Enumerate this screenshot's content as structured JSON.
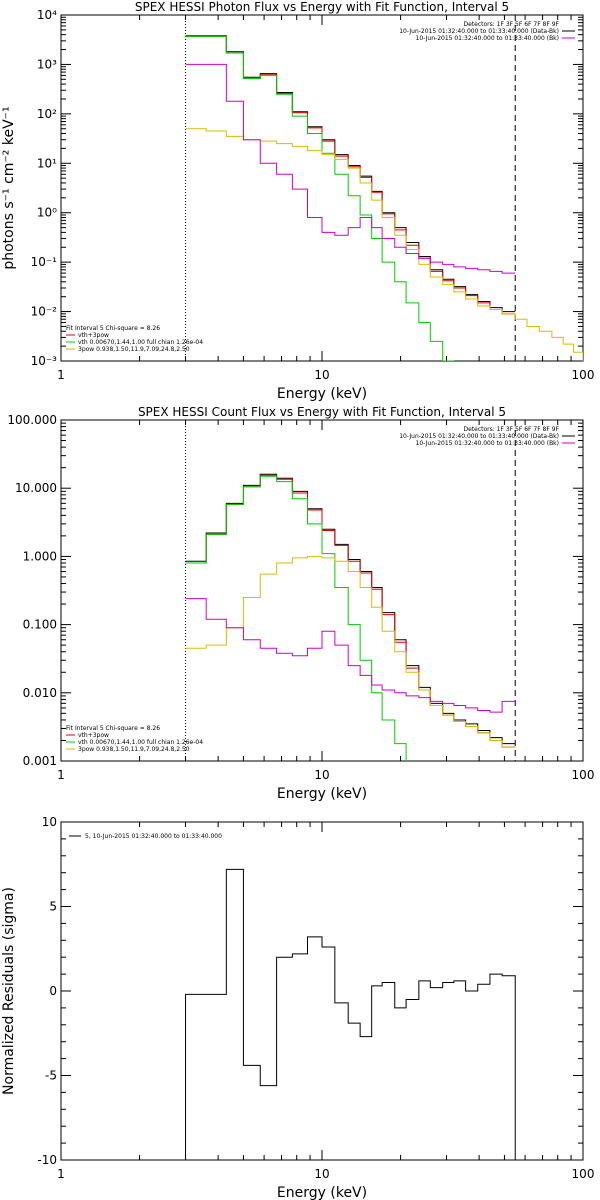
{
  "chart_data": [
    {
      "type": "line",
      "title": "SPEX HESSI Photon Flux vs Energy with Fit Function, Interval 5",
      "xlabel": "Energy (keV)",
      "ylabel": "photons s⁻¹ cm⁻² keV⁻¹",
      "xscale": "log",
      "yscale": "log",
      "xlim": [
        1,
        100
      ],
      "ylim": [
        0.001,
        10000
      ],
      "x_ticks": [
        {
          "v": 1,
          "label": "1"
        },
        {
          "v": 10,
          "label": "10"
        },
        {
          "v": 100,
          "label": "100"
        }
      ],
      "y_ticks": [
        {
          "v": 0.001,
          "label": "10⁻³"
        },
        {
          "v": 0.01,
          "label": "10⁻²"
        },
        {
          "v": 0.1,
          "label": "10⁻¹"
        },
        {
          "v": 1,
          "label": "10⁰"
        },
        {
          "v": 10,
          "label": "10¹"
        },
        {
          "v": 100,
          "label": "10²"
        },
        {
          "v": 1000,
          "label": "10³"
        },
        {
          "v": 10000,
          "label": "10⁴"
        }
      ],
      "legend_top": {
        "placement": "top-right",
        "lines": [
          {
            "text": "Detectors: 1F 3F 5F 6F 7F 8F 9F",
            "color": ""
          },
          {
            "text": "10-Jun-2015 01:32:40.000 to 01:33:40.000 (Data-Bk)",
            "color": "#000000"
          },
          {
            "text": "10-Jun-2015 01:32:40.000 to 01:33:40.000 (Bk)",
            "color": "#cc00cc"
          }
        ]
      },
      "legend_bottom": {
        "placement": "bottom-left",
        "lines": [
          {
            "text": "Fit Interval 5   Chi-square = 8.26",
            "color": ""
          },
          {
            "text": "vth+3pow",
            "color": "#dd0000"
          },
          {
            "text": "vth 0.00670,1.44,1.00  full chian 1.26e-04",
            "color": "#00cc00"
          },
          {
            "text": "3pow 0.938,1.50,11.9,7.09,24.8,2.50",
            "color": "#ddbb00"
          }
        ]
      },
      "vlines": [
        {
          "x": 3.0,
          "style": "dotted",
          "color": "#000000"
        },
        {
          "x": 55.0,
          "style": "dashed",
          "color": "#000000"
        }
      ],
      "edges": [
        3.0,
        3.6,
        4.3,
        5.0,
        5.8,
        6.7,
        7.7,
        8.8,
        10.0,
        11.2,
        12.6,
        14.0,
        15.5,
        17.0,
        19.0,
        21.0,
        23.5,
        26.0,
        29.0,
        32.0,
        35.5,
        39.5,
        44.0,
        49.0,
        55.0,
        61.0,
        68.0,
        76.0,
        84.0,
        92.0,
        100.0
      ],
      "series": [
        {
          "color": "#000000",
          "values": [
            3800,
            3800,
            1800,
            550,
            650,
            270,
            110,
            55,
            30,
            15,
            9,
            5.5,
            2.7,
            1.0,
            0.5,
            0.25,
            0.13,
            0.07,
            0.045,
            0.032,
            0.022,
            0.016,
            0.012,
            0.01
          ]
        },
        {
          "color": "#dd0000",
          "values": [
            3700,
            3700,
            1700,
            520,
            620,
            260,
            105,
            52,
            28,
            14,
            8.5,
            5.2,
            2.6,
            0.95,
            0.45,
            0.22,
            0.12,
            0.065,
            0.042,
            0.03,
            0.021,
            0.015,
            0.011,
            0.009
          ]
        },
        {
          "color": "#00cc00",
          "values": [
            3700,
            3700,
            1700,
            520,
            600,
            250,
            90,
            40,
            16,
            6,
            2.2,
            0.9,
            0.3,
            0.1,
            0.04,
            0.015,
            0.006,
            0.0025,
            0.001
          ]
        },
        {
          "color": "#ddbb00",
          "values": [
            50,
            45,
            35,
            30,
            28,
            25,
            22,
            18,
            15,
            12,
            8,
            4,
            1.8,
            0.8,
            0.35,
            0.18,
            0.09,
            0.05,
            0.035,
            0.025,
            0.018,
            0.013,
            0.011,
            0.009,
            0.007,
            0.005,
            0.004,
            0.003,
            0.0022,
            0.0015
          ]
        },
        {
          "color": "#cc00cc",
          "values": [
            1000,
            1000,
            180,
            30,
            10,
            6,
            3,
            0.8,
            0.4,
            0.35,
            0.5,
            0.8,
            0.5,
            0.3,
            0.2,
            0.15,
            0.12,
            0.1,
            0.09,
            0.08,
            0.075,
            0.07,
            0.065,
            0.06
          ]
        }
      ]
    },
    {
      "type": "line",
      "title": "SPEX HESSI Count Flux vs Energy with Fit Function, Interval 5",
      "xlabel": "Energy (keV)",
      "ylabel": "",
      "xscale": "log",
      "yscale": "log",
      "xlim": [
        1,
        100
      ],
      "ylim": [
        0.001,
        100
      ],
      "x_ticks": [
        {
          "v": 1,
          "label": "1"
        },
        {
          "v": 10,
          "label": "10"
        },
        {
          "v": 100,
          "label": "100"
        }
      ],
      "y_ticks": [
        {
          "v": 0.001,
          "label": "0.001"
        },
        {
          "v": 0.01,
          "label": "0.010"
        },
        {
          "v": 0.1,
          "label": "0.100"
        },
        {
          "v": 1,
          "label": "1.000"
        },
        {
          "v": 10,
          "label": "10.000"
        },
        {
          "v": 100,
          "label": "100.000"
        }
      ],
      "legend_top": {
        "placement": "top-right",
        "lines": [
          {
            "text": "Detectors: 1F 3F 5F 6F 7F 8F 9F",
            "color": ""
          },
          {
            "text": "10-Jun-2015 01:32:40.000 to 01:33:40.000 (Data-Bk)",
            "color": "#000000"
          },
          {
            "text": "10-Jun-2015 01:32:40.000 to 01:33:40.000 (Bk)",
            "color": "#cc00cc"
          }
        ]
      },
      "legend_bottom": {
        "placement": "bottom-left",
        "lines": [
          {
            "text": "Fit Interval 5   Chi-square = 8.26",
            "color": ""
          },
          {
            "text": "vth+3pow",
            "color": "#dd0000"
          },
          {
            "text": "vth 0.00670,1.44,1.00  full chian 1.26e-04",
            "color": "#00cc00"
          },
          {
            "text": "3pow 0.938,1.50,11.9,7.09,24.8,2.50",
            "color": "#ddbb00"
          }
        ]
      },
      "vlines": [
        {
          "x": 3.0,
          "style": "dotted",
          "color": "#000000"
        },
        {
          "x": 55.0,
          "style": "dashed",
          "color": "#000000"
        }
      ],
      "edges": [
        3.0,
        3.6,
        4.3,
        5.0,
        5.8,
        6.7,
        7.7,
        8.8,
        10.0,
        11.2,
        12.6,
        14.0,
        15.5,
        17.0,
        19.0,
        21.0,
        23.5,
        26.0,
        29.0,
        32.0,
        35.5,
        39.5,
        44.0,
        49.0,
        55.0
      ],
      "series": [
        {
          "color": "#000000",
          "values": [
            0.85,
            2.2,
            6.0,
            11.0,
            16.0,
            14.0,
            9.0,
            5.0,
            2.5,
            1.5,
            0.9,
            0.6,
            0.35,
            0.15,
            0.06,
            0.025,
            0.012,
            0.007,
            0.005,
            0.004,
            0.0035,
            0.0028,
            0.0022,
            0.0018
          ]
        },
        {
          "color": "#dd0000",
          "values": [
            0.8,
            2.1,
            5.8,
            10.5,
            15.5,
            13.5,
            8.5,
            4.8,
            2.4,
            1.45,
            0.85,
            0.57,
            0.33,
            0.14,
            0.055,
            0.023,
            0.011,
            0.0065,
            0.0047,
            0.0038,
            0.0032,
            0.0026,
            0.002,
            0.0016
          ]
        },
        {
          "color": "#00cc00",
          "values": [
            0.8,
            2.1,
            5.8,
            10.5,
            15.0,
            12.5,
            7.0,
            3.0,
            1.1,
            0.35,
            0.1,
            0.03,
            0.01,
            0.004,
            0.0018,
            0.0009
          ]
        },
        {
          "color": "#ddbb00",
          "values": [
            0.045,
            0.05,
            0.09,
            0.25,
            0.55,
            0.8,
            0.95,
            1.0,
            0.95,
            0.85,
            0.6,
            0.35,
            0.18,
            0.08,
            0.04,
            0.02,
            0.011,
            0.0065,
            0.0047,
            0.0038,
            0.0032,
            0.0026,
            0.002,
            0.0016
          ]
        },
        {
          "color": "#cc00cc",
          "values": [
            0.24,
            0.12,
            0.09,
            0.06,
            0.045,
            0.038,
            0.035,
            0.045,
            0.08,
            0.05,
            0.025,
            0.018,
            0.013,
            0.011,
            0.01,
            0.009,
            0.0085,
            0.0075,
            0.007,
            0.0065,
            0.006,
            0.0055,
            0.0052,
            0.0075
          ]
        }
      ]
    },
    {
      "type": "line",
      "title": "",
      "xlabel": "Energy (keV)",
      "ylabel": "Normalized Residuals (sigma)",
      "xscale": "log",
      "yscale": "linear",
      "xlim": [
        1,
        100
      ],
      "ylim": [
        -10,
        10
      ],
      "x_ticks": [
        {
          "v": 1,
          "label": "1"
        },
        {
          "v": 10,
          "label": "10"
        },
        {
          "v": 100,
          "label": "100"
        }
      ],
      "y_ticks": [
        {
          "v": -10,
          "label": "-10"
        },
        {
          "v": -5,
          "label": "-5"
        },
        {
          "v": 0,
          "label": "0"
        },
        {
          "v": 5,
          "label": "5"
        },
        {
          "v": 10,
          "label": "10"
        }
      ],
      "legend_top": {
        "placement": "top-left",
        "lines": [
          {
            "text": "5, 10-Jun-2015 01:32:40.000 to 01:33:40.000",
            "color": "#000000"
          }
        ]
      },
      "legend_bottom": {
        "placement": "",
        "lines": []
      },
      "vlines": [],
      "edges": [
        3.0,
        3.6,
        4.3,
        5.0,
        5.8,
        6.7,
        7.7,
        8.8,
        10.0,
        11.2,
        12.6,
        14.0,
        15.5,
        17.0,
        19.0,
        21.0,
        23.5,
        26.0,
        29.0,
        32.0,
        35.5,
        39.5,
        44.0,
        49.0,
        55.0
      ],
      "series": [
        {
          "color": "#000000",
          "drop_to_bottom": true,
          "values": [
            -0.2,
            -0.2,
            7.2,
            -4.4,
            -5.6,
            2.0,
            2.2,
            3.2,
            2.6,
            -0.7,
            -1.9,
            -2.7,
            0.3,
            0.5,
            -1.0,
            -0.5,
            0.6,
            0.2,
            0.5,
            0.6,
            0.0,
            0.4,
            1.0,
            0.9
          ]
        }
      ]
    }
  ]
}
